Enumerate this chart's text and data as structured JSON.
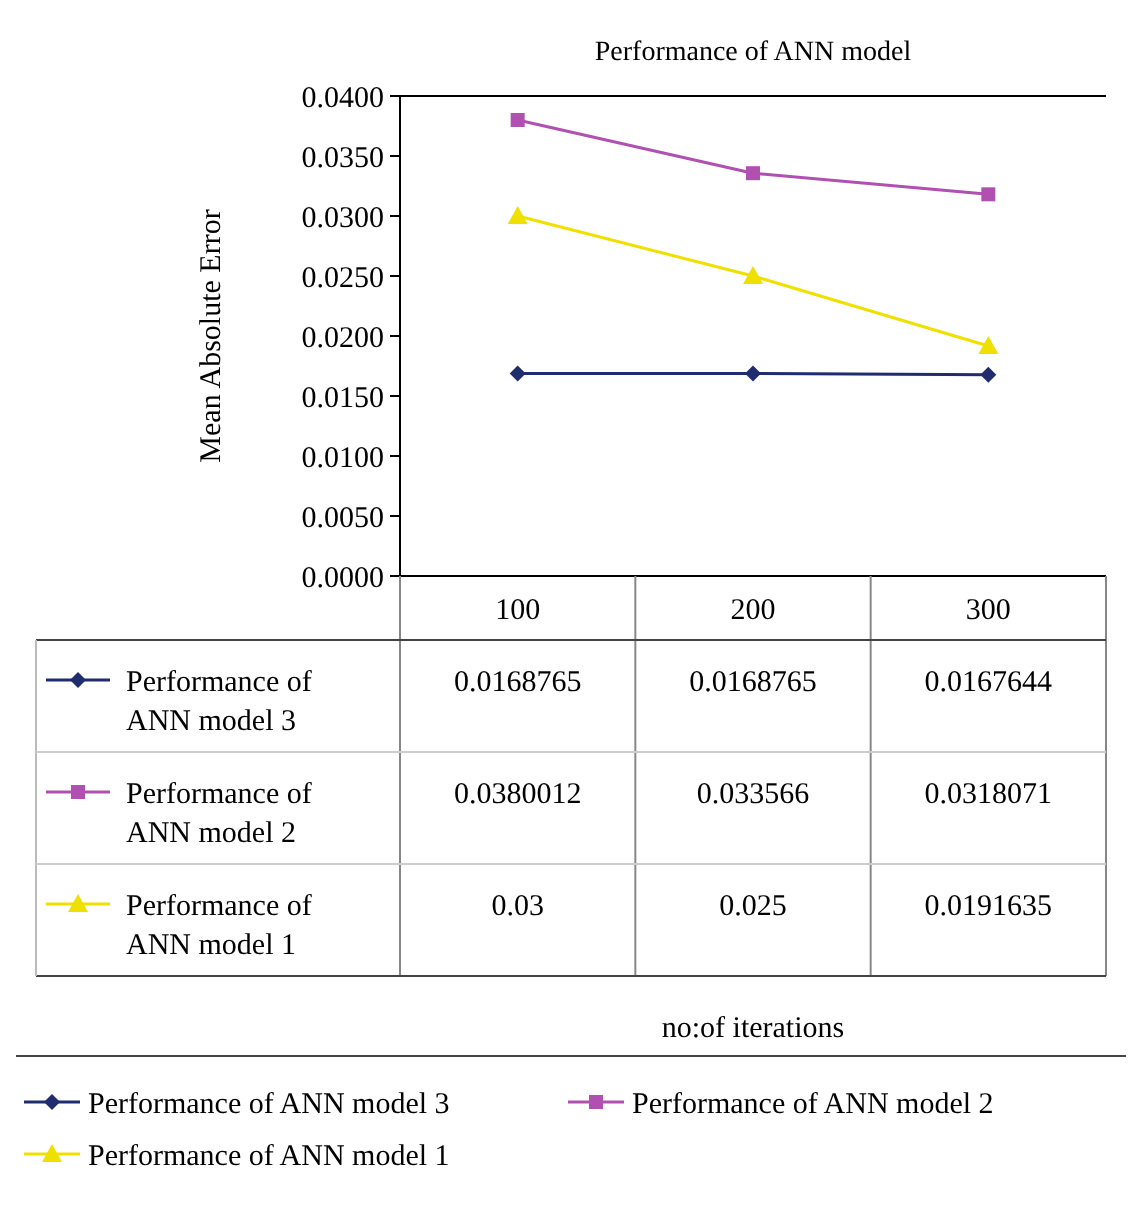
{
  "chart_data": {
    "type": "line",
    "title": "Performance of ANN model",
    "annotations": [
      "no:of iterations"
    ],
    "ylabel": "Mean Absolute Error",
    "categories": [
      "100",
      "200",
      "300"
    ],
    "series": [
      {
        "name": "Performance of ANN model 3",
        "color": "#1f2d6e",
        "marker": "diamond",
        "values": [
          0.0168765,
          0.0168765,
          0.0167644
        ]
      },
      {
        "name": "Performance of ANN model 2",
        "color": "#b050b0",
        "marker": "square",
        "values": [
          0.0380012,
          0.033566,
          0.0318071
        ]
      },
      {
        "name": "Performance of ANN model 1",
        "color": "#f0e000",
        "marker": "triangle",
        "values": [
          0.03,
          0.025,
          0.0191635
        ]
      }
    ],
    "ylim": [
      0,
      0.04
    ],
    "yticks": [
      {
        "value": 0,
        "label": "0.0000"
      },
      {
        "value": 0.005,
        "label": "0.0050"
      },
      {
        "value": 0.01,
        "label": "0.0100"
      },
      {
        "value": 0.015,
        "label": "0.0150"
      },
      {
        "value": 0.02,
        "label": "0.0200"
      },
      {
        "value": 0.025,
        "label": "0.0250"
      },
      {
        "value": 0.03,
        "label": "0.0300"
      },
      {
        "value": 0.035,
        "label": "0.0350"
      },
      {
        "value": 0.04,
        "label": "0.0400"
      }
    ],
    "grid": false,
    "legend": "bottom",
    "data_labels": true
  }
}
